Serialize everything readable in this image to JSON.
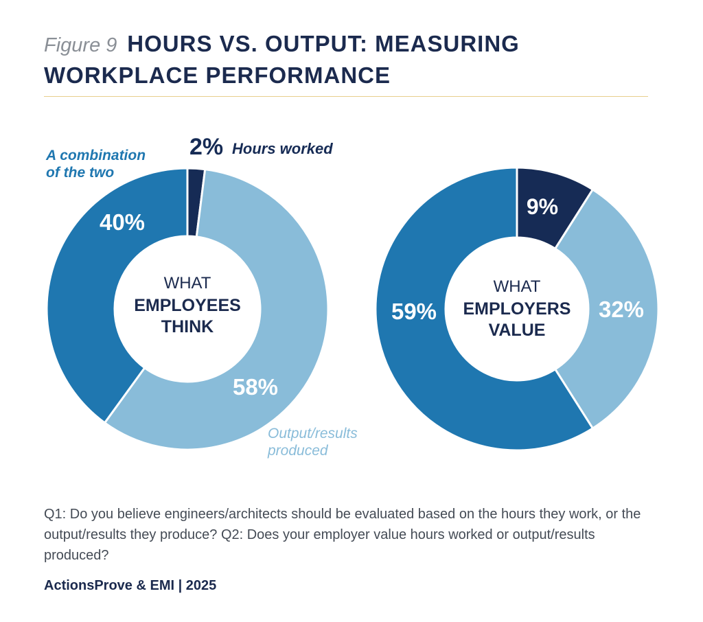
{
  "header": {
    "figure_label": "Figure 9",
    "title_line1": "HOURS VS. OUTPUT: MEASURING",
    "title_line2": "WORKPLACE PERFORMANCE"
  },
  "colors": {
    "dark_navy": "#162b55",
    "mid_blue": "#1f77b0",
    "light_blue": "#89bcd9",
    "title_navy": "#1b2a4e",
    "gold_rule": "#e8cf8c"
  },
  "chart_data": [
    {
      "type": "pie",
      "donut": true,
      "center_label_top": "WHAT",
      "center_label_line1": "EMPLOYEES",
      "center_label_line2": "THINK",
      "slices": [
        {
          "name": "Hours worked",
          "value": 2,
          "label": "2%",
          "color": "#162b55"
        },
        {
          "name": "Output/results produced",
          "value": 58,
          "label": "58%",
          "color": "#89bcd9"
        },
        {
          "name": "A combination of the two",
          "value": 40,
          "label": "40%",
          "color": "#1f77b0"
        }
      ],
      "annotations": {
        "hours": "Hours worked",
        "combo_line1": "A combination",
        "combo_line2": "of the two",
        "output_line1": "Output/results",
        "output_line2": "produced"
      }
    },
    {
      "type": "pie",
      "donut": true,
      "center_label_top": "WHAT",
      "center_label_line1": "EMPLOYERS",
      "center_label_line2": "VALUE",
      "slices": [
        {
          "name": "Hours worked",
          "value": 9,
          "label": "9%",
          "color": "#162b55"
        },
        {
          "name": "Output/results produced",
          "value": 32,
          "label": "32%",
          "color": "#89bcd9"
        },
        {
          "name": "A combination of the two",
          "value": 59,
          "label": "59%",
          "color": "#1f77b0"
        }
      ]
    }
  ],
  "footer": {
    "question": "Q1: Do you believe engineers/architects should be evaluated based on the hours they work, or the output/results they produce? Q2: Does your employer value hours worked or output/results produced?",
    "source": "ActionsProve & EMI | 2025"
  }
}
